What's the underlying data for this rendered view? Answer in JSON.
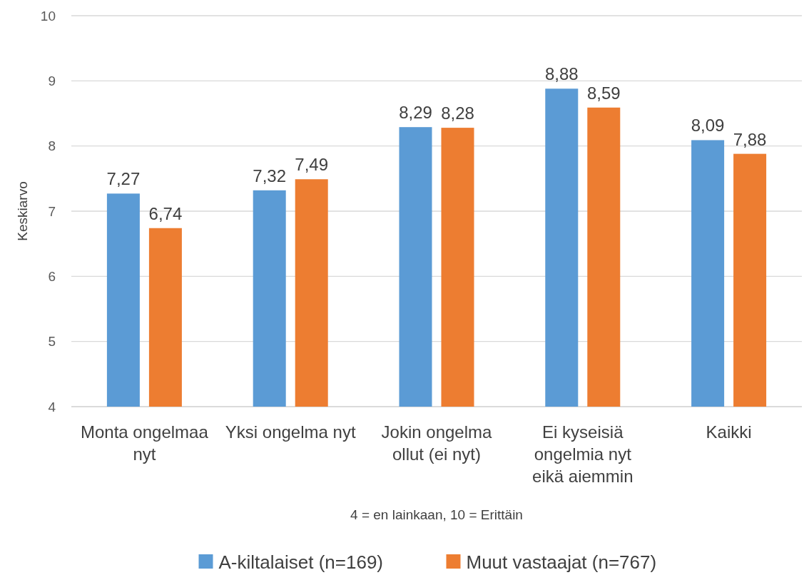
{
  "chart_data": {
    "type": "bar",
    "ylabel": "Keskiarvo",
    "xlabel": "4 = en lainkaan, 10 = Erittäin",
    "categories": [
      "Monta ongelmaa nyt",
      "Yksi ongelma nyt",
      "Jokin ongelma ollut (ei nyt)",
      "Ei kyseisiä ongelmia nyt eikä aiemmin",
      "Kaikki"
    ],
    "series": [
      {
        "name": "A-kiltalaiset (n=169)",
        "color": "#5b9bd5",
        "values": [
          7.27,
          7.32,
          8.29,
          8.88,
          8.09
        ],
        "value_labels": [
          "7,27",
          "7,32",
          "8,29",
          "8,88",
          "8,09"
        ]
      },
      {
        "name": "Muut vastaajat (n=767)",
        "color": "#ed7d31",
        "values": [
          6.74,
          7.49,
          8.28,
          8.59,
          7.88
        ],
        "value_labels": [
          "6,74",
          "7,49",
          "8,28",
          "8,59",
          "7,88"
        ]
      }
    ],
    "ylim": [
      4,
      10
    ],
    "yticks": [
      4,
      5,
      6,
      7,
      8,
      9,
      10
    ],
    "grid": "y",
    "legend": "bottom"
  }
}
